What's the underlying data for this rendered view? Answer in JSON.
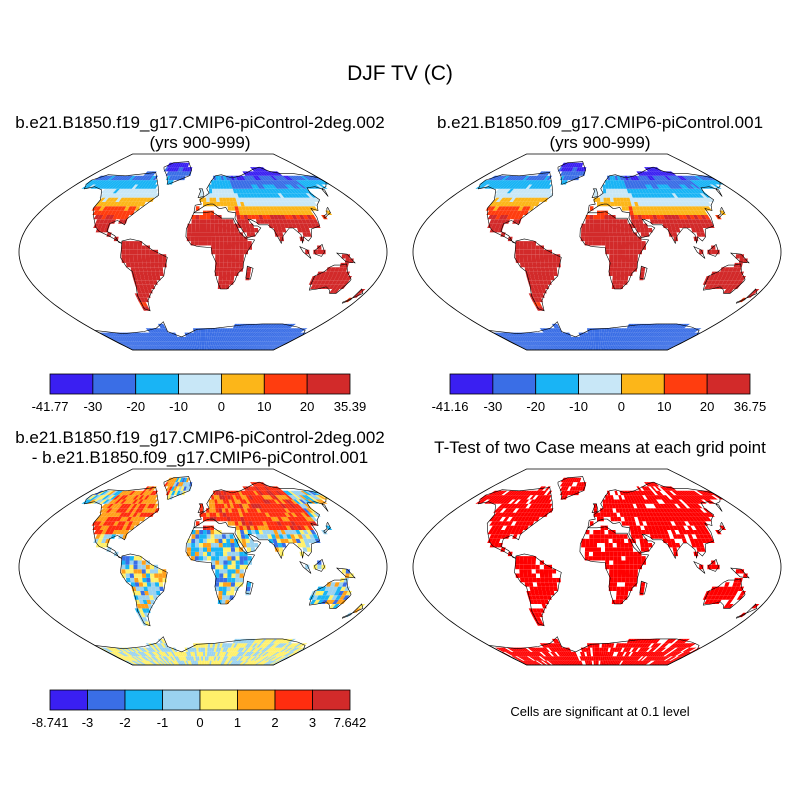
{
  "title": "DJF TV (C)",
  "panels": [
    {
      "id": "case1",
      "title_line1": "b.e21.B1850.f19_g17.CMIP6-piControl-2deg.002",
      "title_line2": "(yrs 900-999)",
      "colorbar": {
        "labels": [
          "-41.77",
          "-30",
          "-20",
          "-10",
          "0",
          "10",
          "20",
          "35.39"
        ],
        "colors": [
          "#3a1ff2",
          "#3a6ee6",
          "#19b4f5",
          "#c8e7f7",
          "#fcb619",
          "#ff3d0f",
          "#d22a2a"
        ]
      }
    },
    {
      "id": "case2",
      "title_line1": "b.e21.B1850.f09_g17.CMIP6-piControl.001",
      "title_line2": "(yrs 900-999)",
      "colorbar": {
        "labels": [
          "-41.16",
          "-30",
          "-20",
          "-10",
          "0",
          "10",
          "20",
          "36.75"
        ],
        "colors": [
          "#3a1ff2",
          "#3a6ee6",
          "#19b4f5",
          "#c8e7f7",
          "#fcb619",
          "#ff3d0f",
          "#d22a2a"
        ]
      }
    },
    {
      "id": "difference",
      "title_line1": "b.e21.B1850.f19_g17.CMIP6-piControl-2deg.002",
      "title_line2": "- b.e21.B1850.f09_g17.CMIP6-piControl.001",
      "colorbar": {
        "labels": [
          "-8.741",
          "-3",
          "-2",
          "-1",
          "0",
          "1",
          "2",
          "3",
          "7.642"
        ],
        "colors": [
          "#3a1ff2",
          "#3a6ee6",
          "#19b4f5",
          "#9ad2f0",
          "#fff06a",
          "#ffa019",
          "#ff2d0f",
          "#d22a2a"
        ]
      }
    },
    {
      "id": "ttest",
      "title_line1": "T-Test of two Case means at each grid point",
      "note": "Cells are significant at 0.1 level",
      "significant_color": "#ff0000"
    }
  ],
  "chart_data": {
    "type": "heatmap",
    "variable": "TV",
    "units": "C",
    "season": "DJF",
    "projection": "Robinson"
  }
}
